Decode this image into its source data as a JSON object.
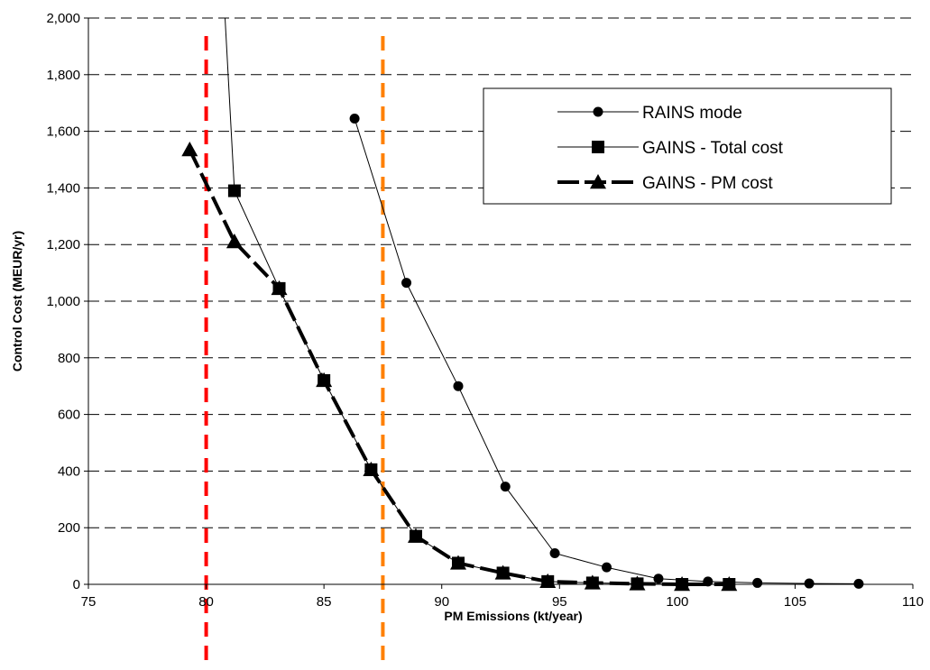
{
  "chart_data": {
    "type": "line",
    "title": "",
    "xlabel": "PM Emissions (kt/year)",
    "ylabel": "Control Cost (MEUR/yr)",
    "xlim": [
      75,
      110
    ],
    "ylim": [
      0,
      2000
    ],
    "x_ticks": [
      75,
      80,
      85,
      90,
      95,
      100,
      105,
      110
    ],
    "y_ticks": [
      0,
      200,
      400,
      600,
      800,
      1000,
      1200,
      1400,
      1600,
      1800,
      2000
    ],
    "x_tick_labels": [
      "75",
      "80",
      "85",
      "90",
      "95",
      "100",
      "105",
      "110"
    ],
    "y_tick_labels": [
      "0",
      "200",
      "400",
      "600",
      "800",
      "1,000",
      "1,200",
      "1,400",
      "1,600",
      "1,800",
      "2,000"
    ],
    "grid": "horizontal dashed",
    "legend_position": "top-right",
    "series": [
      {
        "name": "RAINS mode",
        "marker": "circle",
        "line": "thin-solid",
        "color": "#000000",
        "x": [
          86.3,
          88.5,
          90.7,
          92.7,
          94.8,
          97.0,
          99.2,
          101.3,
          103.4,
          105.6,
          107.7
        ],
        "y": [
          1645,
          1065,
          700,
          345,
          110,
          60,
          20,
          10,
          5,
          3,
          2
        ]
      },
      {
        "name": "GAINS - Total cost",
        "marker": "square",
        "line": "thin-solid",
        "color": "#000000",
        "x": [
          81.2,
          83.1,
          85.0,
          87.0,
          88.9,
          90.7,
          92.6,
          94.5,
          96.4,
          98.3,
          100.2,
          102.2
        ],
        "y": [
          1390,
          1045,
          720,
          405,
          170,
          75,
          40,
          10,
          5,
          2,
          0,
          0
        ],
        "extension": {
          "x": [
            80.8,
            81.2
          ],
          "y": [
            2000,
            1390
          ]
        }
      },
      {
        "name": "GAINS - PM cost",
        "marker": "triangle",
        "line": "thick-dashed",
        "color": "#000000",
        "x": [
          79.3,
          81.2,
          83.1,
          85.0,
          87.0,
          88.9,
          90.7,
          92.6,
          94.5,
          96.4,
          98.3,
          100.2,
          102.2
        ],
        "y": [
          1535,
          1210,
          1045,
          720,
          405,
          170,
          75,
          40,
          10,
          5,
          2,
          0,
          0
        ]
      }
    ],
    "vertical_lines": [
      {
        "x": 80.0,
        "color": "#ff0000",
        "style": "dashed"
      },
      {
        "x": 87.5,
        "color": "#ff8000",
        "style": "dashed"
      }
    ]
  }
}
